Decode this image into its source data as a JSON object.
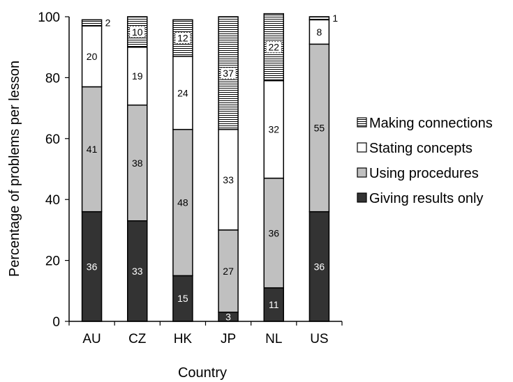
{
  "chart_data": {
    "type": "bar",
    "stacked": true,
    "xlabel": "Country",
    "ylabel": "Percentage of problems per lesson",
    "ylim": [
      0,
      100
    ],
    "yticks": [
      0,
      20,
      40,
      60,
      80,
      100
    ],
    "categories": [
      "AU",
      "CZ",
      "HK",
      "JP",
      "NL",
      "US"
    ],
    "legend_position": "right",
    "series": [
      {
        "name": "Giving results only",
        "values": [
          36,
          33,
          15,
          3,
          11,
          36
        ],
        "fill": "#333333",
        "label_color": "#ffffff",
        "pattern": "solid"
      },
      {
        "name": "Using procedures",
        "values": [
          41,
          38,
          48,
          27,
          36,
          55
        ],
        "fill": "#c0c0c0",
        "label_color": "#000000",
        "pattern": "solid"
      },
      {
        "name": "Stating concepts",
        "values": [
          20,
          19,
          24,
          33,
          32,
          8
        ],
        "fill": "#ffffff",
        "label_color": "#000000",
        "pattern": "solid"
      },
      {
        "name": "Making connections",
        "values": [
          2,
          10,
          12,
          37,
          22,
          1
        ],
        "fill": "#ffffff",
        "label_color": "#000000",
        "pattern": "horizontal-lines"
      }
    ],
    "grid": false
  }
}
